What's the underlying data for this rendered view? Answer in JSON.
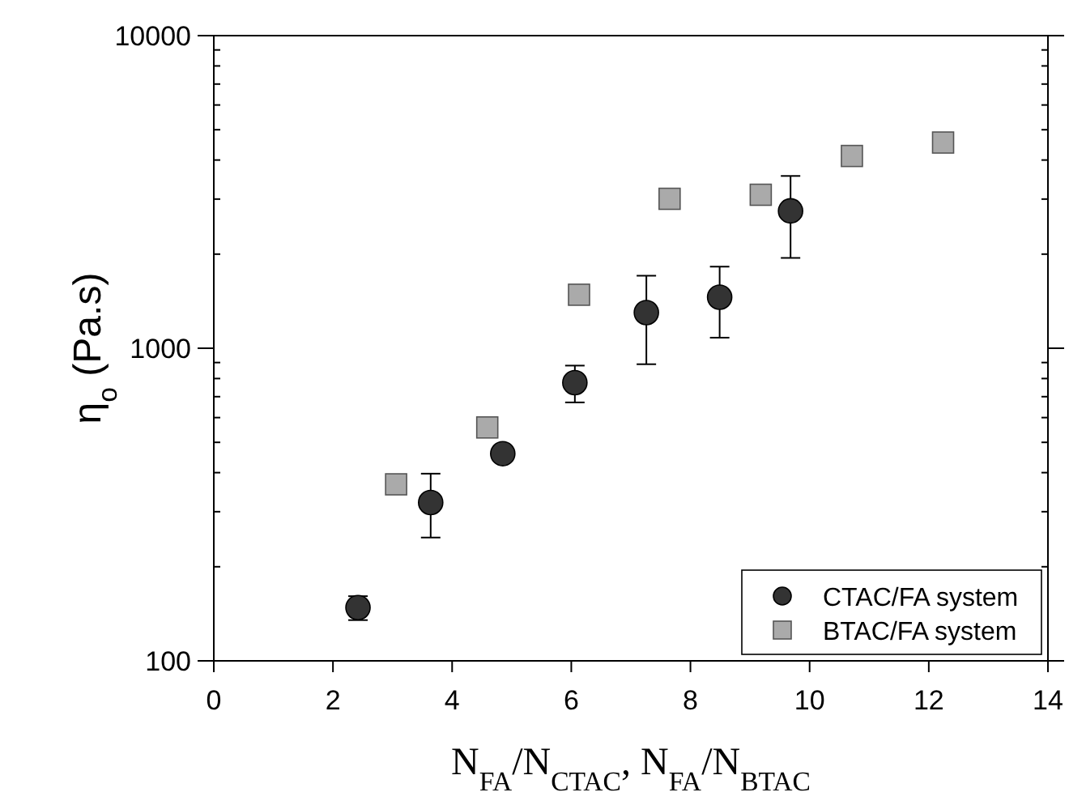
{
  "chart_data": {
    "type": "scatter",
    "xlabel": "N$_{FA}$/N$_{CTAC}$, N$_{FA}$/N$_{BTAC}$",
    "ylabel": "η$_{o}$ (Pa.s)",
    "log": "y",
    "xlim": [
      0,
      14
    ],
    "xticks": [
      0,
      2,
      4,
      6,
      8,
      10,
      12,
      14
    ],
    "ylim": [
      100,
      10000
    ],
    "yticks": [
      100,
      1000,
      10000
    ],
    "legend": "bottom right",
    "grid": false,
    "series": [
      {
        "name": "CTAC/FA system",
        "color": "#333333",
        "marker": "circle",
        "x": [
          2.42,
          3.64,
          4.85,
          6.06,
          7.26,
          8.49,
          9.68
        ],
        "values": [
          148,
          321,
          460,
          776,
          1300,
          1456,
          2750
        ],
        "errors": [
          [
            135,
            161
          ],
          [
            248,
            397
          ],
          null,
          [
            671,
            880
          ],
          [
            889,
            1706
          ],
          [
            1081,
            1824
          ],
          [
            1945,
            3557
          ]
        ]
      },
      {
        "name": "BTAC/FA system",
        "color": "#aaaaaa",
        "marker": "square",
        "x": [
          3.06,
          4.59,
          6.13,
          7.65,
          9.18,
          10.71,
          12.24
        ],
        "values": [
          367,
          558,
          1483,
          3006,
          3097,
          4121,
          4550
        ]
      }
    ]
  }
}
